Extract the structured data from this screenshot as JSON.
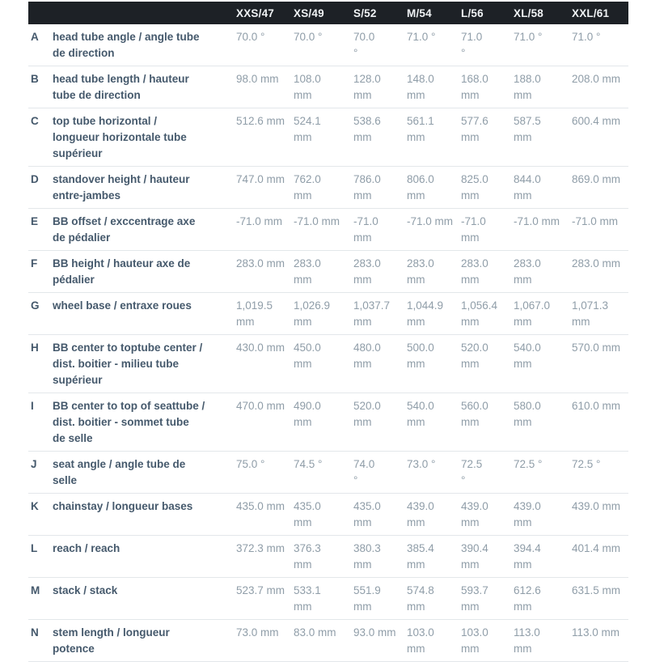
{
  "geometry_table": {
    "header": {
      "columns": [
        "XXS/47",
        "XS/49",
        "S/52",
        "M/54",
        "L/56",
        "XL/58",
        "XXL/61"
      ]
    },
    "rows": [
      {
        "letter": "A",
        "label": "head tube angle / angle tube\nde direction",
        "values": [
          "70.0 °",
          "70.0 °",
          "70.0\n°",
          "71.0 °",
          "71.0\n°",
          "71.0 °",
          "71.0 °"
        ]
      },
      {
        "letter": "B",
        "label": "head tube length / hauteur\ntube de direction",
        "values": [
          "98.0 mm",
          "108.0\nmm",
          "128.0\nmm",
          "148.0\nmm",
          "168.0\nmm",
          "188.0\nmm",
          "208.0 mm"
        ]
      },
      {
        "letter": "C",
        "label": "top tube horizontal /\nlongueur horizontale tube\nsupérieur",
        "values": [
          "512.6 mm",
          "524.1\nmm",
          "538.6\nmm",
          "561.1\nmm",
          "577.6\nmm",
          "587.5\nmm",
          "600.4 mm"
        ]
      },
      {
        "letter": "D",
        "label": "standover height / hauteur\nentre-jambes",
        "values": [
          "747.0 mm",
          "762.0\nmm",
          "786.0\nmm",
          "806.0\nmm",
          "825.0\nmm",
          "844.0\nmm",
          "869.0 mm"
        ]
      },
      {
        "letter": "E",
        "label": "BB offset / exccentrage axe\nde pédalier",
        "values": [
          "-71.0 mm",
          "-71.0 mm",
          "-71.0\nmm",
          "-71.0 mm",
          "-71.0\nmm",
          "-71.0 mm",
          "-71.0 mm"
        ]
      },
      {
        "letter": "F",
        "label": "BB height / hauteur axe de\npédalier",
        "values": [
          "283.0 mm",
          "283.0\nmm",
          "283.0\nmm",
          "283.0\nmm",
          "283.0\nmm",
          "283.0\nmm",
          "283.0 mm"
        ]
      },
      {
        "letter": "G",
        "label": "wheel base / entraxe roues",
        "values": [
          "1,019.5\nmm",
          "1,026.9\nmm",
          "1,037.7\nmm",
          "1,044.9\nmm",
          "1,056.4\nmm",
          "1,067.0\nmm",
          "1,071.3\nmm"
        ]
      },
      {
        "letter": "H",
        "label": "BB center to toptube center /\ndist. boitier - milieu tube\nsupérieur",
        "values": [
          "430.0 mm",
          "450.0\nmm",
          "480.0\nmm",
          "500.0\nmm",
          "520.0\nmm",
          "540.0\nmm",
          "570.0 mm"
        ]
      },
      {
        "letter": "I",
        "label": "BB center to top of seattube /\ndist. boitier - sommet tube\nde selle",
        "values": [
          "470.0 mm",
          "490.0\nmm",
          "520.0\nmm",
          "540.0\nmm",
          "560.0\nmm",
          "580.0\nmm",
          "610.0 mm"
        ]
      },
      {
        "letter": "J",
        "label": "seat angle / angle tube de\nselle",
        "values": [
          "75.0 °",
          "74.5 °",
          "74.0\n°",
          "73.0 °",
          "72.5\n°",
          "72.5 °",
          "72.5 °"
        ]
      },
      {
        "letter": "K",
        "label": "chainstay / longueur bases",
        "values": [
          "435.0 mm",
          "435.0\nmm",
          "435.0\nmm",
          "439.0\nmm",
          "439.0\nmm",
          "439.0\nmm",
          "439.0 mm"
        ]
      },
      {
        "letter": "L",
        "label": "reach / reach",
        "values": [
          "372.3 mm",
          "376.3\nmm",
          "380.3\nmm",
          "385.4\nmm",
          "390.4\nmm",
          "394.4\nmm",
          "401.4 mm"
        ]
      },
      {
        "letter": "M",
        "label": "stack / stack",
        "values": [
          "523.7 mm",
          "533.1\nmm",
          "551.9\nmm",
          "574.8\nmm",
          "593.7\nmm",
          "612.6\nmm",
          "631.5 mm"
        ]
      },
      {
        "letter": "N",
        "label": "stem length / longueur\npotence",
        "values": [
          "73.0 mm",
          "83.0 mm",
          "93.0 mm",
          "103.0\nmm",
          "103.0\nmm",
          "113.0\nmm",
          "113.0 mm"
        ]
      }
    ],
    "colors": {
      "header_bg": "#1d2126",
      "header_text": "#eff2f4",
      "label_text": "#45596c",
      "value_text": "#8f9da8",
      "divider": "#e3e7ea",
      "page_bg": "#ffffff"
    }
  }
}
